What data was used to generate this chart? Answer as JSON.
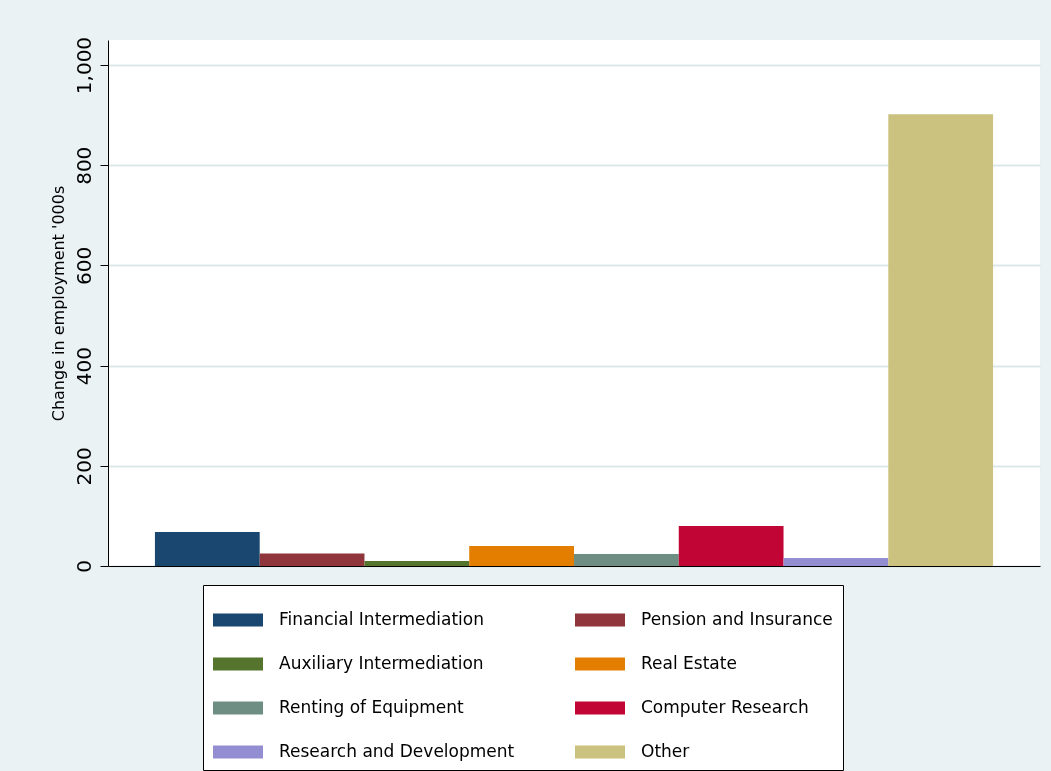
{
  "chart_data": {
    "type": "bar",
    "ylabel": "Change in employment '000s",
    "categories": [
      null
    ],
    "series": [
      {
        "name": "Financial Intermediation",
        "color": "#1a476f",
        "values": [
          68
        ]
      },
      {
        "name": "Pension and Insurance",
        "color": "#90353b",
        "values": [
          25
        ]
      },
      {
        "name": "Auxiliary Intermediation",
        "color": "#55752f",
        "values": [
          10
        ]
      },
      {
        "name": "Real Estate",
        "color": "#e37e00",
        "values": [
          40
        ]
      },
      {
        "name": "Renting of Equipment",
        "color": "#6e8e84",
        "values": [
          24
        ]
      },
      {
        "name": "Computer Research",
        "color": "#c10534",
        "values": [
          80
        ]
      },
      {
        "name": "Research and Development",
        "color": "#938dd2",
        "values": [
          16
        ]
      },
      {
        "name": "Other",
        "color": "#cac27e",
        "values": [
          902
        ]
      }
    ],
    "ylim": [
      0,
      1050
    ],
    "yticks": [
      0,
      200,
      400,
      600,
      800,
      {
        "value": 1000,
        "label": "1,000"
      }
    ],
    "grid": "y",
    "legend": "bottom",
    "tick_labels": "y"
  }
}
